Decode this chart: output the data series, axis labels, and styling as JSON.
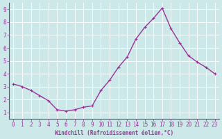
{
  "x": [
    0,
    1,
    2,
    3,
    4,
    5,
    6,
    7,
    8,
    9,
    10,
    11,
    12,
    13,
    14,
    15,
    16,
    17,
    18,
    19,
    20,
    21,
    22,
    23
  ],
  "y": [
    3.2,
    3.0,
    2.7,
    2.3,
    1.9,
    1.2,
    1.1,
    1.2,
    1.4,
    1.5,
    2.7,
    3.5,
    4.5,
    5.3,
    6.7,
    7.6,
    8.3,
    9.1,
    7.5,
    6.4,
    5.4,
    4.9,
    4.5,
    4.0
  ],
  "line_color": "#993399",
  "marker": "+",
  "marker_size": 3,
  "line_width": 1.0,
  "bg_color": "#cce8e8",
  "grid_color": "#b0d4d4",
  "xlabel": "Windchill (Refroidissement éolien,°C)",
  "xlabel_color": "#993399",
  "tick_color": "#993399",
  "axis_color": "#993399",
  "ylim": [
    0.5,
    9.5
  ],
  "xlim": [
    -0.5,
    23.5
  ],
  "yticks": [
    1,
    2,
    3,
    4,
    5,
    6,
    7,
    8,
    9
  ],
  "xticks": [
    0,
    1,
    2,
    3,
    4,
    5,
    6,
    7,
    8,
    9,
    10,
    11,
    12,
    13,
    14,
    15,
    16,
    17,
    18,
    19,
    20,
    21,
    22,
    23
  ],
  "label_fontsize": 5.5,
  "tick_fontsize": 5.5
}
